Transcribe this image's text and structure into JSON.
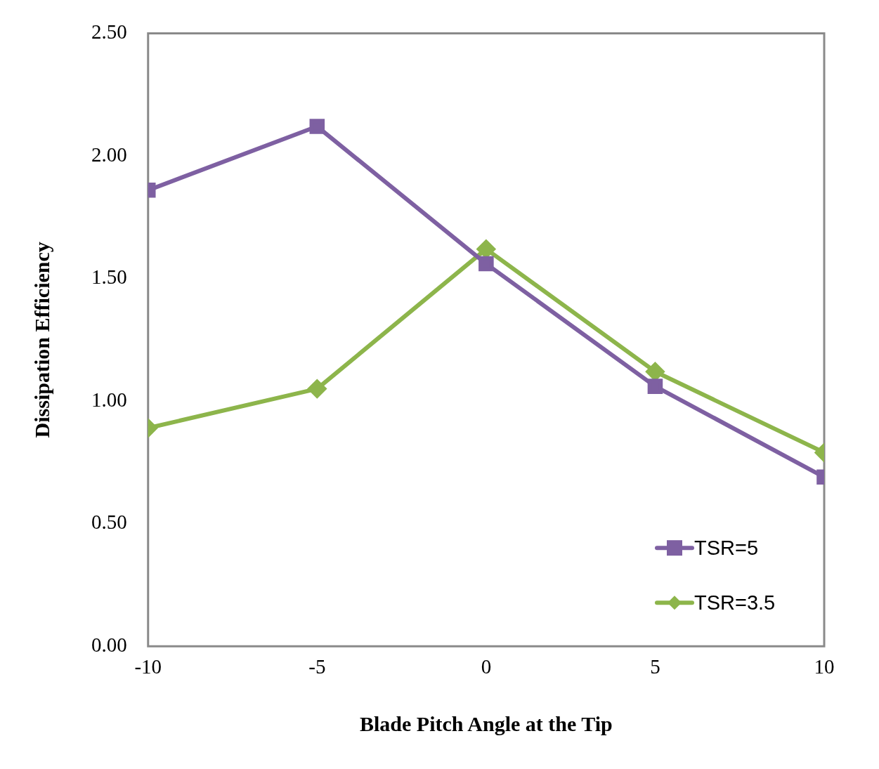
{
  "chart_data": {
    "type": "line",
    "xlabel": "Blade Pitch Angle at the Tip",
    "ylabel": "Dissipation Efficiency",
    "x": [
      -10,
      -5,
      0,
      5,
      10
    ],
    "series": [
      {
        "name": "TSR=5",
        "color": "#7e60a2",
        "marker": "square",
        "values": [
          1.86,
          2.12,
          1.56,
          1.06,
          0.69
        ]
      },
      {
        "name": "TSR=3.5",
        "color": "#8db54b",
        "marker": "diamond",
        "values": [
          0.89,
          1.05,
          1.62,
          1.12,
          0.79
        ]
      }
    ],
    "xlim": [
      -10,
      10
    ],
    "xticks": [
      -10,
      -5,
      0,
      5,
      10
    ],
    "ylim": [
      0,
      2.5
    ],
    "yticks": [
      {
        "value": 0,
        "label": "0.00"
      },
      {
        "value": 0.5,
        "label": "0.50"
      },
      {
        "value": 1,
        "label": "1.00"
      },
      {
        "value": 1.5,
        "label": "1.50"
      },
      {
        "value": 2,
        "label": "2.00"
      },
      {
        "value": 2.5,
        "label": "2.50"
      }
    ],
    "grid": false,
    "legend": "bottom right",
    "line_style": "solid"
  }
}
